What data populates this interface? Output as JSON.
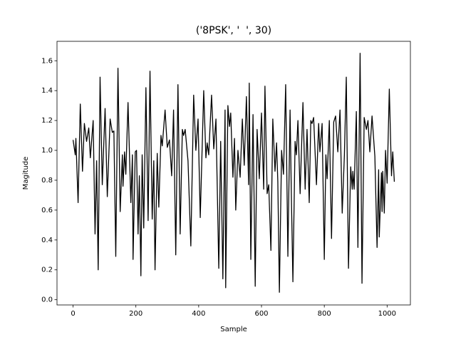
{
  "chart_data": {
    "type": "line",
    "title": "('8PSK', '  ', 30)",
    "xlabel": "Sample",
    "ylabel": "Magitude",
    "x": [
      0,
      7,
      9,
      16,
      23,
      30,
      36,
      43,
      50,
      55,
      64,
      70,
      75,
      80,
      86,
      93,
      102,
      109,
      118,
      125,
      130,
      136,
      143,
      150,
      157,
      159,
      164,
      168,
      175,
      184,
      189,
      191,
      198,
      202,
      207,
      211,
      216,
      220,
      225,
      232,
      239,
      245,
      252,
      257,
      261,
      268,
      273,
      280,
      284,
      293,
      300,
      307,
      314,
      320,
      327,
      334,
      341,
      348,
      352,
      357,
      366,
      375,
      384,
      391,
      398,
      405,
      416,
      423,
      427,
      432,
      441,
      448,
      455,
      464,
      470,
      477,
      484,
      486,
      493,
      498,
      502,
      509,
      514,
      518,
      525,
      532,
      539,
      545,
      552,
      559,
      561,
      566,
      573,
      580,
      586,
      593,
      600,
      607,
      611,
      618,
      623,
      630,
      636,
      643,
      648,
      652,
      657,
      664,
      670,
      677,
      684,
      691,
      695,
      700,
      707,
      711,
      716,
      723,
      732,
      739,
      745,
      752,
      757,
      761,
      766,
      775,
      782,
      786,
      793,
      800,
      805,
      809,
      816,
      823,
      830,
      836,
      843,
      850,
      857,
      864,
      870,
      877,
      884,
      889,
      891,
      895,
      902,
      907,
      914,
      920,
      927,
      934,
      939,
      945,
      952,
      961,
      968,
      973,
      975,
      982,
      984,
      986,
      991,
      995,
      1000,
      1007,
      1014,
      1018,
      1023
    ],
    "series": [
      {
        "color": "#000000",
        "values": [
          1.07,
          0.97,
          1.08,
          0.65,
          1.31,
          0.86,
          1.18,
          1.06,
          1.15,
          0.95,
          1.2,
          0.44,
          0.93,
          0.2,
          1.49,
          0.77,
          1.28,
          0.69,
          1.21,
          1.12,
          1.13,
          0.29,
          1.55,
          0.59,
          0.97,
          0.76,
          0.99,
          0.84,
          1.32,
          0.65,
          0.97,
          0.27,
          0.99,
          1.0,
          0.44,
          0.83,
          0.16,
          0.97,
          0.48,
          1.42,
          0.53,
          1.53,
          0.54,
          0.93,
          0.2,
          0.98,
          0.62,
          1.1,
          1.03,
          1.27,
          1.02,
          1.07,
          0.83,
          1.27,
          0.3,
          1.44,
          0.44,
          1.14,
          1.1,
          1.14,
          0.93,
          0.36,
          1.37,
          1.0,
          1.21,
          0.55,
          1.4,
          0.95,
          1.05,
          0.97,
          1.37,
          1.01,
          1.21,
          0.21,
          1.06,
          0.14,
          1.27,
          0.08,
          1.3,
          1.16,
          1.25,
          0.82,
          1.08,
          0.6,
          1.0,
          0.82,
          1.21,
          0.9,
          1.36,
          0.77,
          1.45,
          0.27,
          1.24,
          0.09,
          1.14,
          0.81,
          1.25,
          0.74,
          1.43,
          0.71,
          0.77,
          0.33,
          1.21,
          0.86,
          1.05,
          0.79,
          0.05,
          1.0,
          0.84,
          1.44,
          0.29,
          1.27,
          0.71,
          0.12,
          1.06,
          0.97,
          1.2,
          0.71,
          1.32,
          0.74,
          1.14,
          0.65,
          1.2,
          1.18,
          1.22,
          0.77,
          1.18,
          0.99,
          1.18,
          0.27,
          0.97,
          0.81,
          1.2,
          0.41,
          1.19,
          1.23,
          0.99,
          1.27,
          0.58,
          0.97,
          1.49,
          0.21,
          0.89,
          0.74,
          0.86,
          0.74,
          1.26,
          0.35,
          1.65,
          0.11,
          1.22,
          1.14,
          1.2,
          0.99,
          1.23,
          0.96,
          0.35,
          0.87,
          0.42,
          0.85,
          0.59,
          0.86,
          0.58,
          1.0,
          0.78,
          1.41,
          0.83,
          0.99,
          0.79
        ]
      }
    ],
    "xlim": [
      -51.15,
      1074.15
    ],
    "ylim": [
      -0.035,
      1.73
    ],
    "xticks": [
      0,
      200,
      400,
      600,
      800,
      1000
    ],
    "yticks": [
      {
        "value": 0,
        "label": "0.0"
      },
      0.2,
      0.4,
      0.6,
      0.8,
      {
        "value": 1,
        "label": "1.0"
      },
      1.2,
      1.4,
      1.6
    ]
  }
}
